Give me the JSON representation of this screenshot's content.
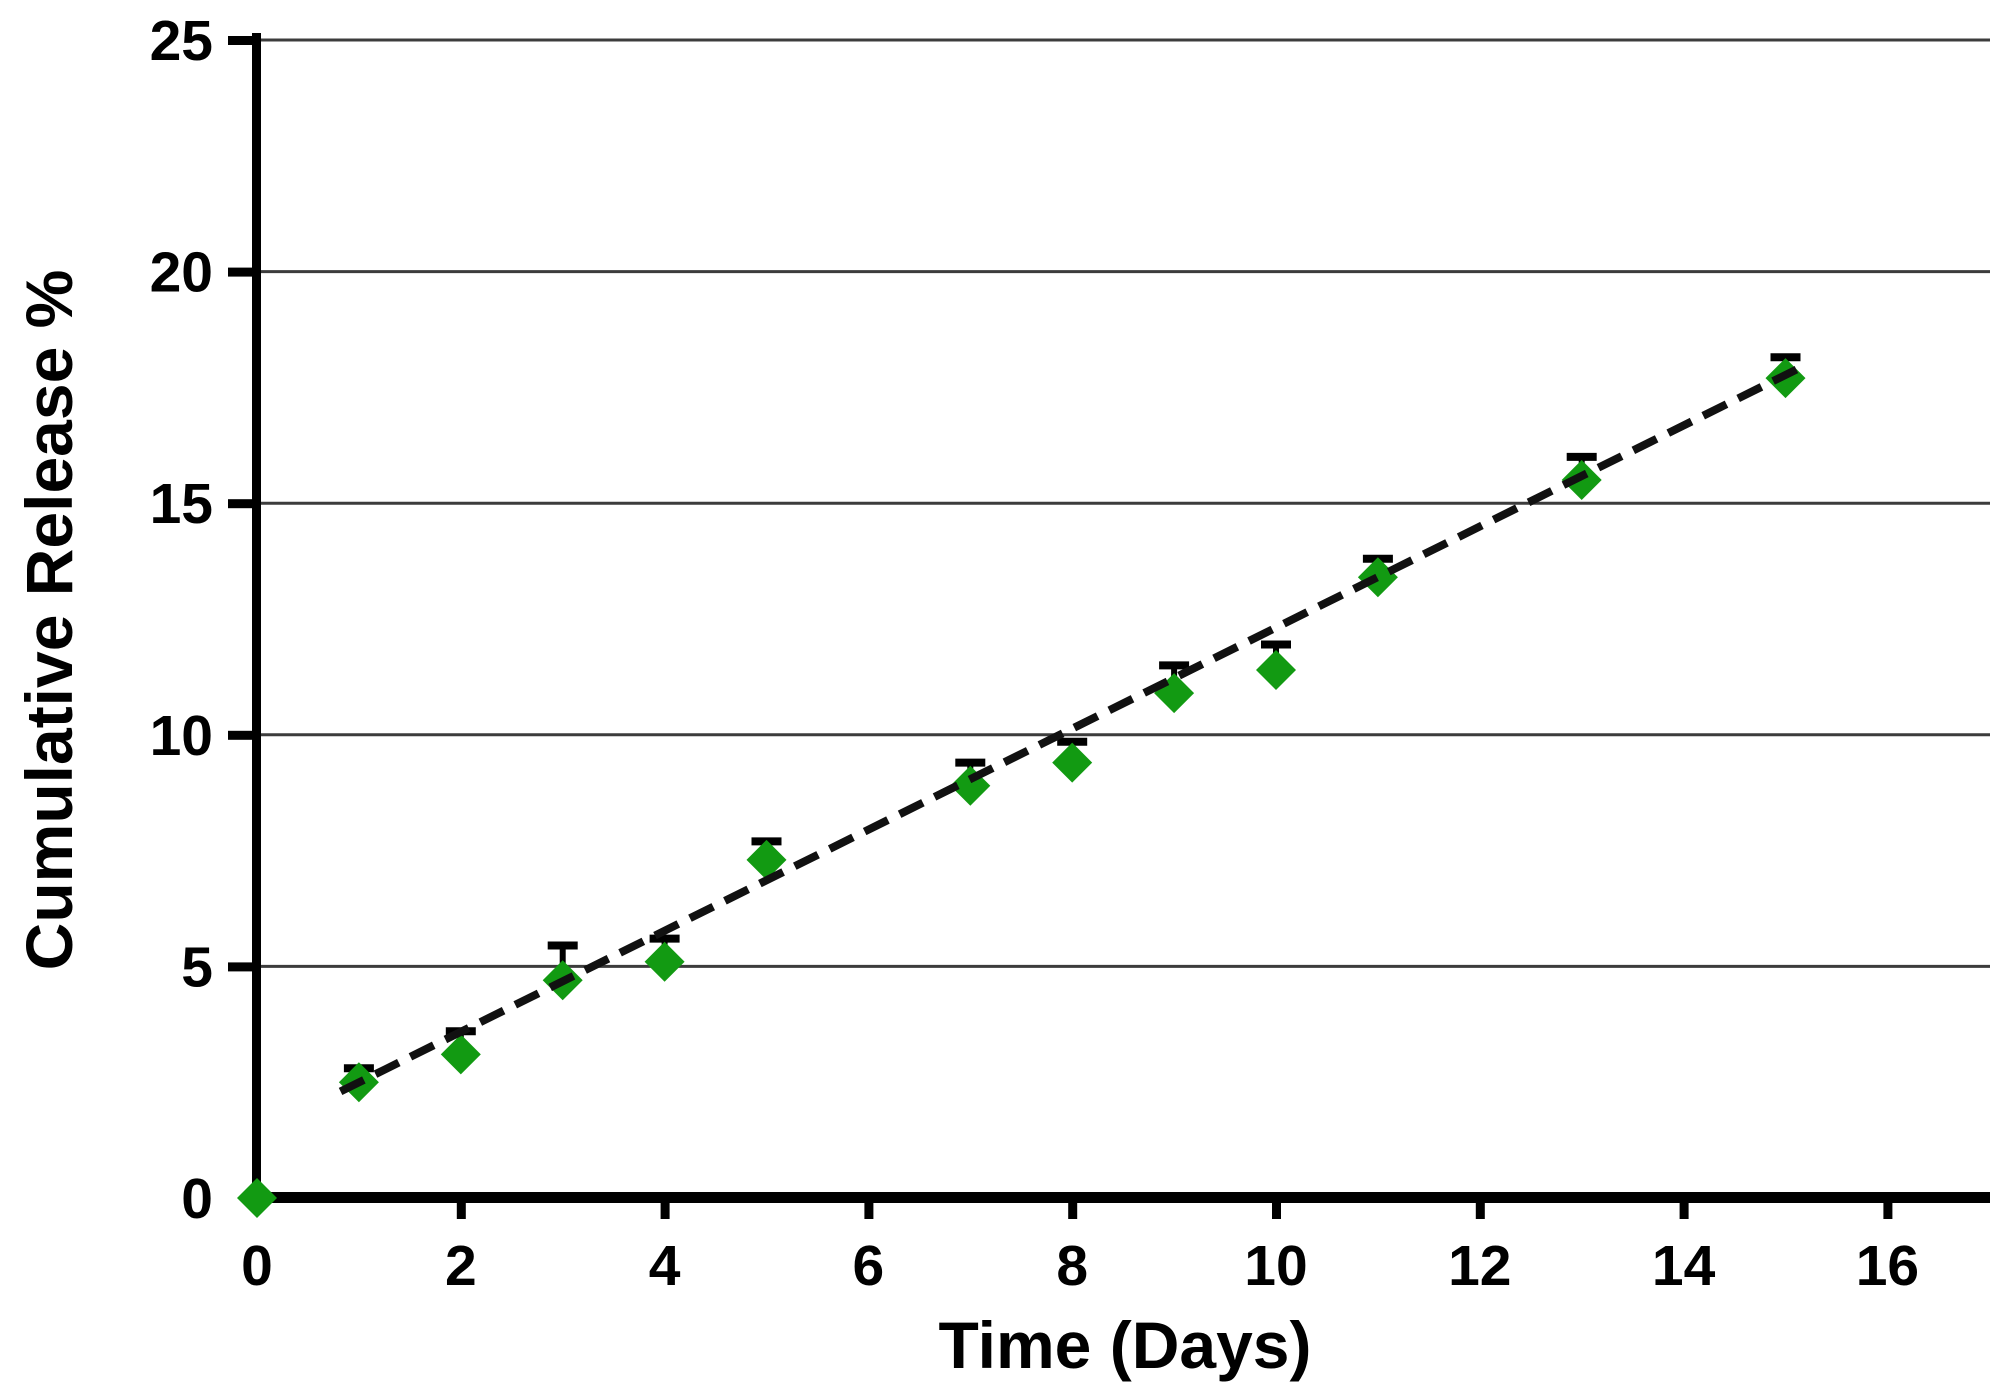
{
  "chart_data": {
    "type": "scatter",
    "title": "",
    "xlabel": "Time (Days)",
    "ylabel": "Cumulative Release %",
    "xlim": [
      0,
      17.2
    ],
    "ylim": [
      0,
      25
    ],
    "x_ticks": [
      0,
      2,
      4,
      6,
      8,
      10,
      12,
      14,
      16
    ],
    "y_ticks": [
      0,
      5,
      10,
      15,
      20,
      25
    ],
    "grid": "horizontal gridlines every 5 units",
    "legend_position": "none",
    "series": [
      {
        "name": "Cumulative Release %",
        "marker": "diamond",
        "color": "#129a12",
        "error_bars": "upper caps only",
        "points": [
          {
            "x": 0,
            "y": 0.0,
            "err_up": 0
          },
          {
            "x": 1,
            "y": 2.5,
            "err_up": 0.3
          },
          {
            "x": 2,
            "y": 3.1,
            "err_up": 0.5
          },
          {
            "x": 3,
            "y": 4.7,
            "err_up": 0.75
          },
          {
            "x": 4,
            "y": 5.1,
            "err_up": 0.5
          },
          {
            "x": 5,
            "y": 7.3,
            "err_up": 0.4
          },
          {
            "x": 7,
            "y": 8.9,
            "err_up": 0.5
          },
          {
            "x": 8,
            "y": 9.4,
            "err_up": 0.45
          },
          {
            "x": 9,
            "y": 10.9,
            "err_up": 0.6
          },
          {
            "x": 10,
            "y": 11.4,
            "err_up": 0.55
          },
          {
            "x": 11,
            "y": 13.4,
            "err_up": 0.4
          },
          {
            "x": 13,
            "y": 15.5,
            "err_up": 0.5
          },
          {
            "x": 15,
            "y": 17.7,
            "err_up": 0.45
          }
        ]
      }
    ],
    "trendline": {
      "style": "dashed",
      "color": "#111111",
      "x_start": 0.82,
      "y_start": 2.3,
      "x_end": 15.12,
      "y_end": 17.9
    }
  },
  "colors": {
    "marker": "#129a12",
    "axis": "#000000",
    "gridline": "#3c3c3c",
    "trendline": "#111111",
    "background": "#ffffff"
  }
}
